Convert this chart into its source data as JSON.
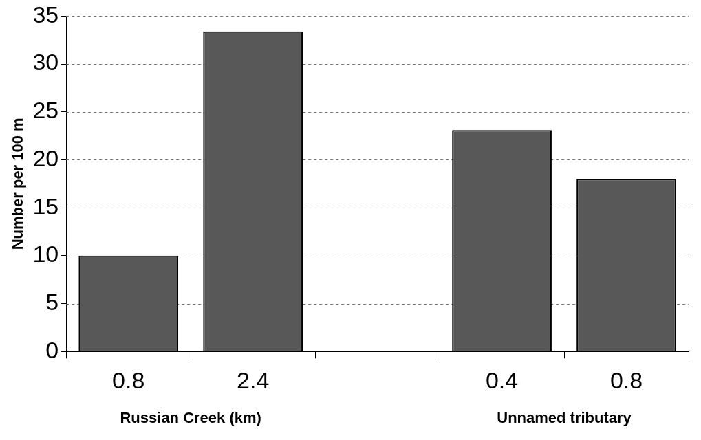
{
  "chart_data": {
    "type": "bar",
    "ylabel": "Number per 100 m",
    "categories": [
      "0.8",
      "2.4",
      null,
      "0.4",
      "0.8"
    ],
    "values": [
      10,
      33.4,
      null,
      23.1,
      18
    ],
    "color": "#585858",
    "ylim": [
      0,
      35
    ],
    "yticks": [
      0,
      5,
      10,
      15,
      20,
      25,
      30,
      35
    ],
    "grid": "y",
    "annotations": [
      "Russian Creek (km)",
      "Unnamed tributary"
    ]
  }
}
